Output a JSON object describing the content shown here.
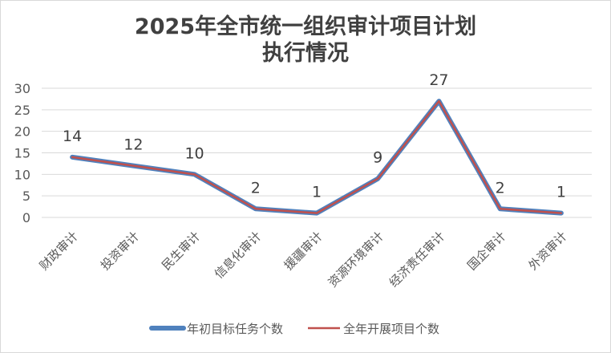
{
  "chart_data": {
    "type": "line",
    "title": "2025年全市统一组织审计项目计划执行情况",
    "title_lines": [
      "2025年全市统一组织审计项目计划",
      "执行情况"
    ],
    "categories": [
      "财政审计",
      "投资审计",
      "民生审计",
      "信息化审计",
      "援疆审计",
      "资源环境审计",
      "经济责任审计",
      "国企审计",
      "外资审计"
    ],
    "series": [
      {
        "name": "年初目标任务个数",
        "values": [
          14,
          12,
          10,
          2,
          1,
          9,
          27,
          2,
          1
        ],
        "color": "#4f81bd"
      },
      {
        "name": "全年开展项目个数",
        "values": [
          14,
          12,
          10,
          2,
          1,
          9,
          27,
          2,
          1
        ],
        "color": "#c0504d"
      }
    ],
    "data_labels": [
      "14",
      "12",
      "10",
      "2",
      "1",
      "9",
      "27",
      "2",
      "1"
    ],
    "yticks": [
      "0",
      "5",
      "10",
      "15",
      "20",
      "25",
      "30"
    ],
    "ylim": [
      0,
      30
    ],
    "grid": true,
    "legend_position": "bottom",
    "xlabel": "",
    "ylabel": ""
  }
}
